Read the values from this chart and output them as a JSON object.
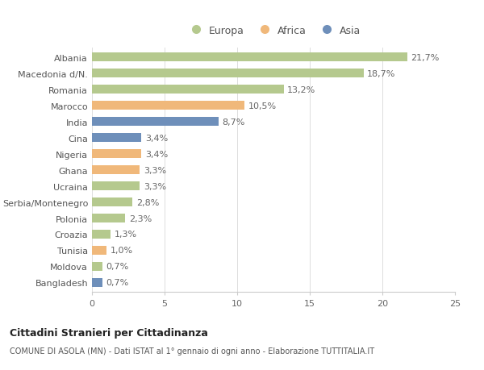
{
  "countries": [
    "Albania",
    "Macedonia d/N.",
    "Romania",
    "Marocco",
    "India",
    "Cina",
    "Nigeria",
    "Ghana",
    "Ucraina",
    "Serbia/Montenegro",
    "Polonia",
    "Croazia",
    "Tunisia",
    "Moldova",
    "Bangladesh"
  ],
  "values": [
    21.7,
    18.7,
    13.2,
    10.5,
    8.7,
    3.4,
    3.4,
    3.3,
    3.3,
    2.8,
    2.3,
    1.3,
    1.0,
    0.7,
    0.7
  ],
  "labels": [
    "21,7%",
    "18,7%",
    "13,2%",
    "10,5%",
    "8,7%",
    "3,4%",
    "3,4%",
    "3,3%",
    "3,3%",
    "2,8%",
    "2,3%",
    "1,3%",
    "1,0%",
    "0,7%",
    "0,7%"
  ],
  "continents": [
    "Europa",
    "Europa",
    "Europa",
    "Africa",
    "Asia",
    "Asia",
    "Africa",
    "Africa",
    "Europa",
    "Europa",
    "Europa",
    "Europa",
    "Africa",
    "Europa",
    "Asia"
  ],
  "colors": {
    "Europa": "#b5c98e",
    "Africa": "#f0b87a",
    "Asia": "#6e8fba"
  },
  "xlim": [
    0,
    25
  ],
  "xticks": [
    0,
    5,
    10,
    15,
    20,
    25
  ],
  "title": "Cittadini Stranieri per Cittadinanza",
  "subtitle": "COMUNE DI ASOLA (MN) - Dati ISTAT al 1° gennaio di ogni anno - Elaborazione TUTTITALIA.IT",
  "background_color": "#ffffff",
  "bar_height": 0.55,
  "label_fontsize": 8.0,
  "tick_fontsize": 8.0,
  "legend_labels": [
    "Europa",
    "Africa",
    "Asia"
  ]
}
